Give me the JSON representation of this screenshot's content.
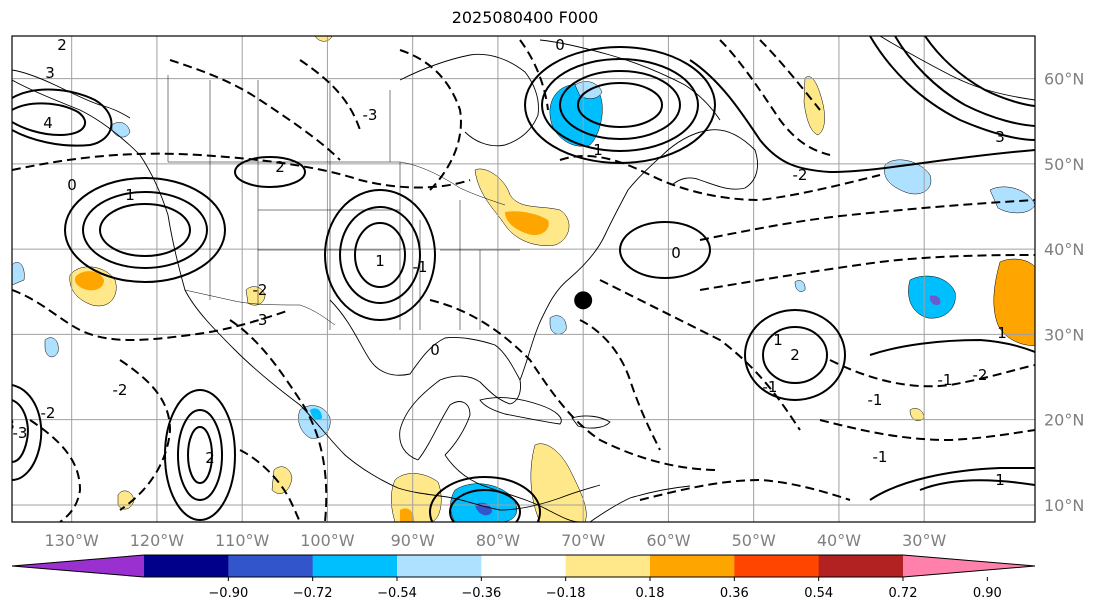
{
  "title": "2025080400 F000",
  "map": {
    "projection": "PlateCarree",
    "extent": {
      "lon": [
        -137,
        -17
      ],
      "lat": [
        8,
        65
      ]
    },
    "gridlines": true,
    "lat_labels": [
      "60°N",
      "50°N",
      "40°N",
      "30°N",
      "20°N",
      "10°N"
    ],
    "lat_values": [
      60,
      50,
      40,
      30,
      20,
      10
    ],
    "lon_labels": [
      "130°W",
      "120°W",
      "110°W",
      "100°W",
      "90°W",
      "80°W",
      "70°W",
      "60°W",
      "50°W",
      "40°W",
      "30°W"
    ],
    "lon_values": [
      -130,
      -120,
      -110,
      -100,
      -90,
      -80,
      -70,
      -60,
      -50,
      -40,
      -30
    ],
    "marker": {
      "lon": -70,
      "lat": 34,
      "color": "#000000"
    },
    "contour_labels_pos": [
      "2",
      "3",
      "4",
      "1",
      "1",
      "2",
      "3",
      "1",
      "2",
      "2",
      "3",
      "1",
      "0",
      "1",
      "1"
    ],
    "contour_labels_neg": [
      "-2",
      "-3",
      "-1",
      "-1",
      "-2",
      "-3",
      "-1",
      "-2",
      "-1",
      "0",
      "0",
      "0",
      "-1",
      "-2",
      "-3",
      "-2"
    ]
  },
  "colorbar": {
    "ticks": [
      "−0.90",
      "−0.72",
      "−0.54",
      "−0.36",
      "−0.18",
      "0.18",
      "0.36",
      "0.54",
      "0.72",
      "0.90"
    ],
    "colors": [
      "#9b30d0",
      "#00008b",
      "#3355cc",
      "#00bfff",
      "#aee0ff",
      "#ffffff",
      "#ffe88a",
      "#ffa500",
      "#ff4500",
      "#b22222",
      "#ff80aa"
    ]
  }
}
